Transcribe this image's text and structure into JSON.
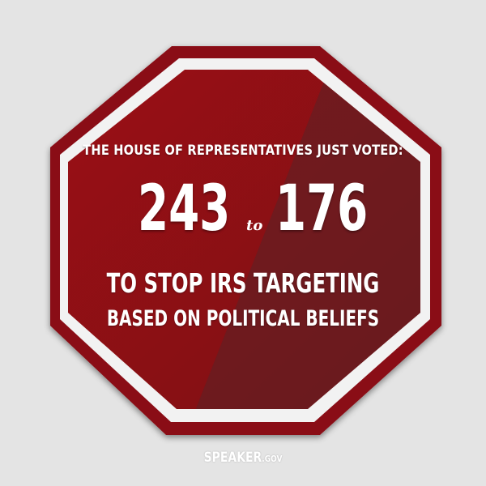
{
  "sign": {
    "headline": "THE HOUSE OF REPRESENTATIVES JUST VOTED:",
    "yes_count": "243",
    "to_word": "to",
    "no_count": "176",
    "line_one": "TO STOP IRS TARGETING",
    "line_two": "BASED ON POLITICAL BELIEFS"
  },
  "brand": {
    "main": "SPEAKER",
    "suffix": ".GOV"
  },
  "colors": {
    "background": "#e4e4e4",
    "sign_red": "#8e1116",
    "sign_red_dark": "#6b1a1e",
    "border_white": "#f2f2f2",
    "text": "#ffffff"
  }
}
